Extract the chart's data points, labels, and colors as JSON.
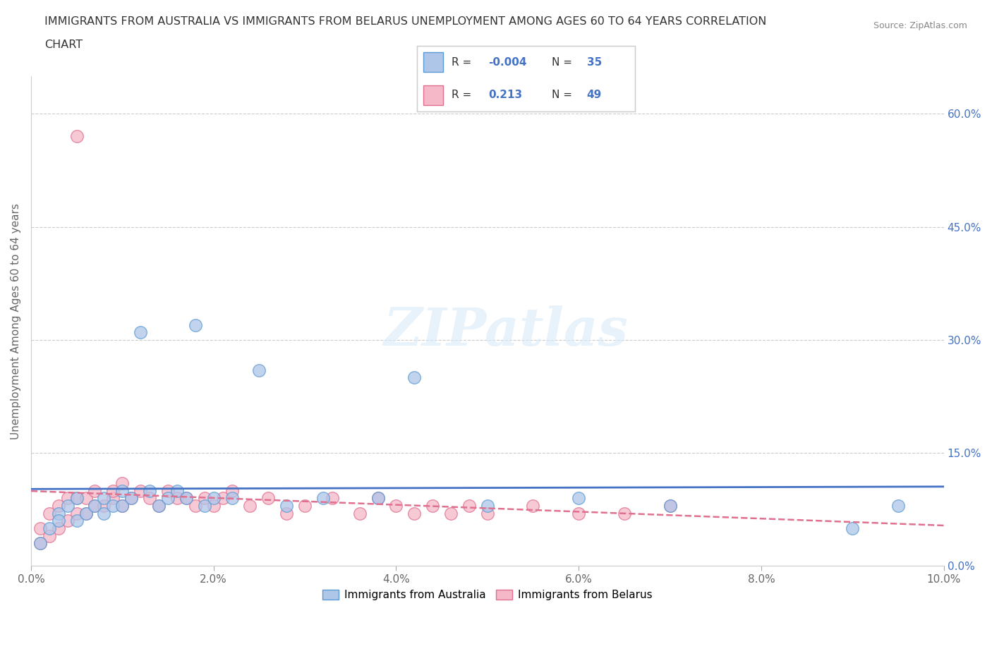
{
  "title_line1": "IMMIGRANTS FROM AUSTRALIA VS IMMIGRANTS FROM BELARUS UNEMPLOYMENT AMONG AGES 60 TO 64 YEARS CORRELATION",
  "title_line2": "CHART",
  "source": "Source: ZipAtlas.com",
  "ylabel": "Unemployment Among Ages 60 to 64 years",
  "xlim": [
    0.0,
    0.1
  ],
  "ylim": [
    0.0,
    0.65
  ],
  "xticks": [
    0.0,
    0.02,
    0.04,
    0.06,
    0.08,
    0.1
  ],
  "xticklabels": [
    "0.0%",
    "2.0%",
    "4.0%",
    "6.0%",
    "8.0%",
    "10.0%"
  ],
  "yticks": [
    0.0,
    0.15,
    0.3,
    0.45,
    0.6
  ],
  "yticklabels": [
    "0.0%",
    "15.0%",
    "30.0%",
    "45.0%",
    "60.0%"
  ],
  "grid_color": "#cccccc",
  "background_color": "#ffffff",
  "watermark": "ZIPatlas",
  "australia_color": "#aec6e8",
  "australia_edge_color": "#5b9bd5",
  "belarus_color": "#f4b8c8",
  "belarus_edge_color": "#e07090",
  "R_australia": -0.004,
  "N_australia": 35,
  "R_belarus": 0.213,
  "N_belarus": 49,
  "australia_x": [
    0.001,
    0.002,
    0.003,
    0.003,
    0.004,
    0.005,
    0.005,
    0.006,
    0.007,
    0.008,
    0.008,
    0.009,
    0.01,
    0.01,
    0.011,
    0.012,
    0.013,
    0.014,
    0.015,
    0.016,
    0.017,
    0.018,
    0.019,
    0.02,
    0.022,
    0.025,
    0.028,
    0.032,
    0.038,
    0.042,
    0.05,
    0.06,
    0.07,
    0.09,
    0.095
  ],
  "australia_y": [
    0.03,
    0.05,
    0.07,
    0.06,
    0.08,
    0.06,
    0.09,
    0.07,
    0.08,
    0.09,
    0.07,
    0.08,
    0.1,
    0.08,
    0.09,
    0.31,
    0.1,
    0.08,
    0.09,
    0.1,
    0.09,
    0.32,
    0.08,
    0.09,
    0.09,
    0.26,
    0.08,
    0.09,
    0.09,
    0.25,
    0.08,
    0.09,
    0.08,
    0.05,
    0.08
  ],
  "belarus_x": [
    0.001,
    0.001,
    0.002,
    0.002,
    0.003,
    0.003,
    0.004,
    0.004,
    0.005,
    0.005,
    0.006,
    0.006,
    0.007,
    0.007,
    0.008,
    0.009,
    0.009,
    0.01,
    0.01,
    0.011,
    0.012,
    0.013,
    0.014,
    0.015,
    0.016,
    0.017,
    0.018,
    0.019,
    0.02,
    0.021,
    0.022,
    0.024,
    0.026,
    0.028,
    0.03,
    0.033,
    0.036,
    0.038,
    0.04,
    0.042,
    0.044,
    0.046,
    0.048,
    0.05,
    0.055,
    0.06,
    0.065,
    0.07,
    0.005
  ],
  "belarus_y": [
    0.03,
    0.05,
    0.04,
    0.07,
    0.05,
    0.08,
    0.06,
    0.09,
    0.07,
    0.09,
    0.07,
    0.09,
    0.08,
    0.1,
    0.08,
    0.09,
    0.1,
    0.08,
    0.11,
    0.09,
    0.1,
    0.09,
    0.08,
    0.1,
    0.09,
    0.09,
    0.08,
    0.09,
    0.08,
    0.09,
    0.1,
    0.08,
    0.09,
    0.07,
    0.08,
    0.09,
    0.07,
    0.09,
    0.08,
    0.07,
    0.08,
    0.07,
    0.08,
    0.07,
    0.08,
    0.07,
    0.07,
    0.08,
    0.57
  ],
  "legend_box_color_aus": "#aec6e8",
  "legend_box_edge_aus": "#5b9bd5",
  "legend_box_color_bel": "#f4b8c8",
  "legend_box_edge_bel": "#e07090",
  "legend_R_color": "#4472c4",
  "legend_N_color": "#4472c4",
  "trendline_aus_color": "#4472c4",
  "trendline_bel_color": "#e07090",
  "ytick_color": "#4472c4"
}
